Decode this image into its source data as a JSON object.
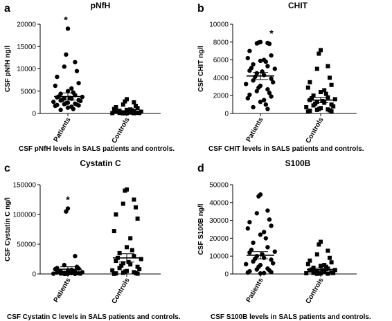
{
  "chart_data": [
    {
      "type": "scatter",
      "letter": "a",
      "title": "pNfH",
      "ylabel": "CSF pNfH ng/l",
      "caption": "CSF pNfH levels in SALS patients and controls.",
      "ylim": [
        0,
        20000
      ],
      "yticks": [
        0,
        5000,
        10000,
        15000,
        20000
      ],
      "categories": [
        "Patients",
        "Controls"
      ],
      "annotation": "*",
      "series": [
        {
          "marker": "circle",
          "mean": 3800,
          "sem": 800,
          "values": [
            19000,
            13200,
            11500,
            10500,
            9500,
            8200,
            6800,
            6200,
            5600,
            5000,
            4700,
            4400,
            4100,
            3800,
            3700,
            3600,
            3500,
            3400,
            3300,
            3100,
            3000,
            2900,
            2800,
            2600,
            2400,
            2300,
            2200,
            2100,
            2000,
            1900,
            1800,
            1700,
            1500,
            1300,
            1000,
            800
          ]
        },
        {
          "marker": "square",
          "mean": 450,
          "sem": 150,
          "values": [
            3200,
            2700,
            2500,
            2000,
            1700,
            1400,
            1200,
            1000,
            900,
            800,
            700,
            600,
            500,
            450,
            400,
            350,
            300,
            250,
            200,
            180,
            150,
            120,
            100,
            80,
            60,
            50,
            40,
            30
          ]
        }
      ]
    },
    {
      "type": "scatter",
      "letter": "b",
      "title": "CHIT",
      "ylabel": "CSF CHIT ng/l",
      "caption": "CSF CHIT levels in SALS patients and controls.",
      "ylim": [
        0,
        10000
      ],
      "yticks": [
        0,
        2000,
        4000,
        6000,
        8000,
        10000
      ],
      "categories": [
        "Patients",
        "Controls"
      ],
      "annotation": "*",
      "series": [
        {
          "marker": "circle",
          "mean": 4200,
          "sem": 400,
          "values": [
            8000,
            7950,
            7900,
            7850,
            7800,
            7000,
            6500,
            6200,
            6000,
            5900,
            5800,
            5500,
            5300,
            5100,
            5000,
            4800,
            4700,
            4500,
            4300,
            4100,
            3900,
            3700,
            3500,
            3300,
            3100,
            2900,
            2700,
            2500,
            2300,
            2100,
            1900,
            1700,
            1500,
            1300,
            1000,
            700,
            500
          ]
        },
        {
          "marker": "square",
          "mean": 1500,
          "sem": 300,
          "values": [
            7100,
            6700,
            5300,
            5000,
            4000,
            3500,
            3200,
            2900,
            2600,
            2400,
            2200,
            2000,
            1800,
            1700,
            1600,
            1500,
            1400,
            1300,
            1200,
            1100,
            1000,
            900,
            800,
            700,
            600,
            500,
            450,
            400,
            350,
            300,
            250,
            200
          ]
        }
      ]
    },
    {
      "type": "scatter",
      "letter": "c",
      "title": "Cystatin C",
      "ylabel": "CSF Cystatin C ng/l",
      "caption": "CSF Cystatin C levels in SALS patients and controls.",
      "ylim": [
        0,
        150000
      ],
      "yticks": [
        0,
        50000,
        100000,
        150000
      ],
      "categories": [
        "Patients",
        "Controls"
      ],
      "annotation": "*",
      "series": [
        {
          "marker": "circle",
          "mean": 8000,
          "sem": 4000,
          "values": [
            110000,
            105000,
            30000,
            15000,
            12000,
            10000,
            9000,
            8000,
            7000,
            6000,
            5000,
            4500,
            4000,
            3500,
            3000,
            2500,
            2000,
            1800,
            1500,
            1200,
            1000,
            800,
            600,
            500,
            400,
            300,
            200,
            100
          ]
        },
        {
          "marker": "square",
          "mean": 27000,
          "sem": 7000,
          "values": [
            142000,
            140000,
            125000,
            118000,
            112000,
            100000,
            93000,
            72000,
            60000,
            45000,
            40000,
            35000,
            30000,
            27000,
            25000,
            22000,
            20000,
            18000,
            16000,
            14000,
            12000,
            10000,
            8000,
            6000,
            5000,
            4000,
            3000,
            2000,
            1500,
            1000,
            500,
            200
          ]
        }
      ]
    },
    {
      "type": "scatter",
      "letter": "d",
      "title": "S100B",
      "ylabel": "CSF S100B ng/l",
      "caption": "CSF S100B levels in SALS patients and controls.",
      "ylim": [
        0,
        50000
      ],
      "yticks": [
        0,
        10000,
        20000,
        30000,
        40000,
        50000
      ],
      "categories": [
        "Patients",
        "Controls"
      ],
      "annotation": "",
      "series": [
        {
          "marker": "circle",
          "mean": 10500,
          "sem": 2000,
          "values": [
            44500,
            43500,
            35500,
            34000,
            30500,
            29000,
            27000,
            25500,
            23500,
            22000,
            20000,
            17500,
            15000,
            13500,
            12500,
            12000,
            11000,
            10000,
            9000,
            8500,
            8000,
            7000,
            6000,
            5500,
            5000,
            4000,
            3000,
            2500,
            2000,
            1500,
            1000,
            800,
            500,
            300
          ]
        },
        {
          "marker": "square",
          "mean": 2500,
          "sem": 800,
          "values": [
            18000,
            16500,
            13000,
            11000,
            9000,
            7500,
            6500,
            5500,
            5000,
            4500,
            4000,
            3500,
            3000,
            2500,
            2200,
            2000,
            1800,
            1500,
            1200,
            1000,
            800,
            600,
            500,
            400,
            300,
            200,
            150,
            100
          ]
        }
      ]
    }
  ]
}
